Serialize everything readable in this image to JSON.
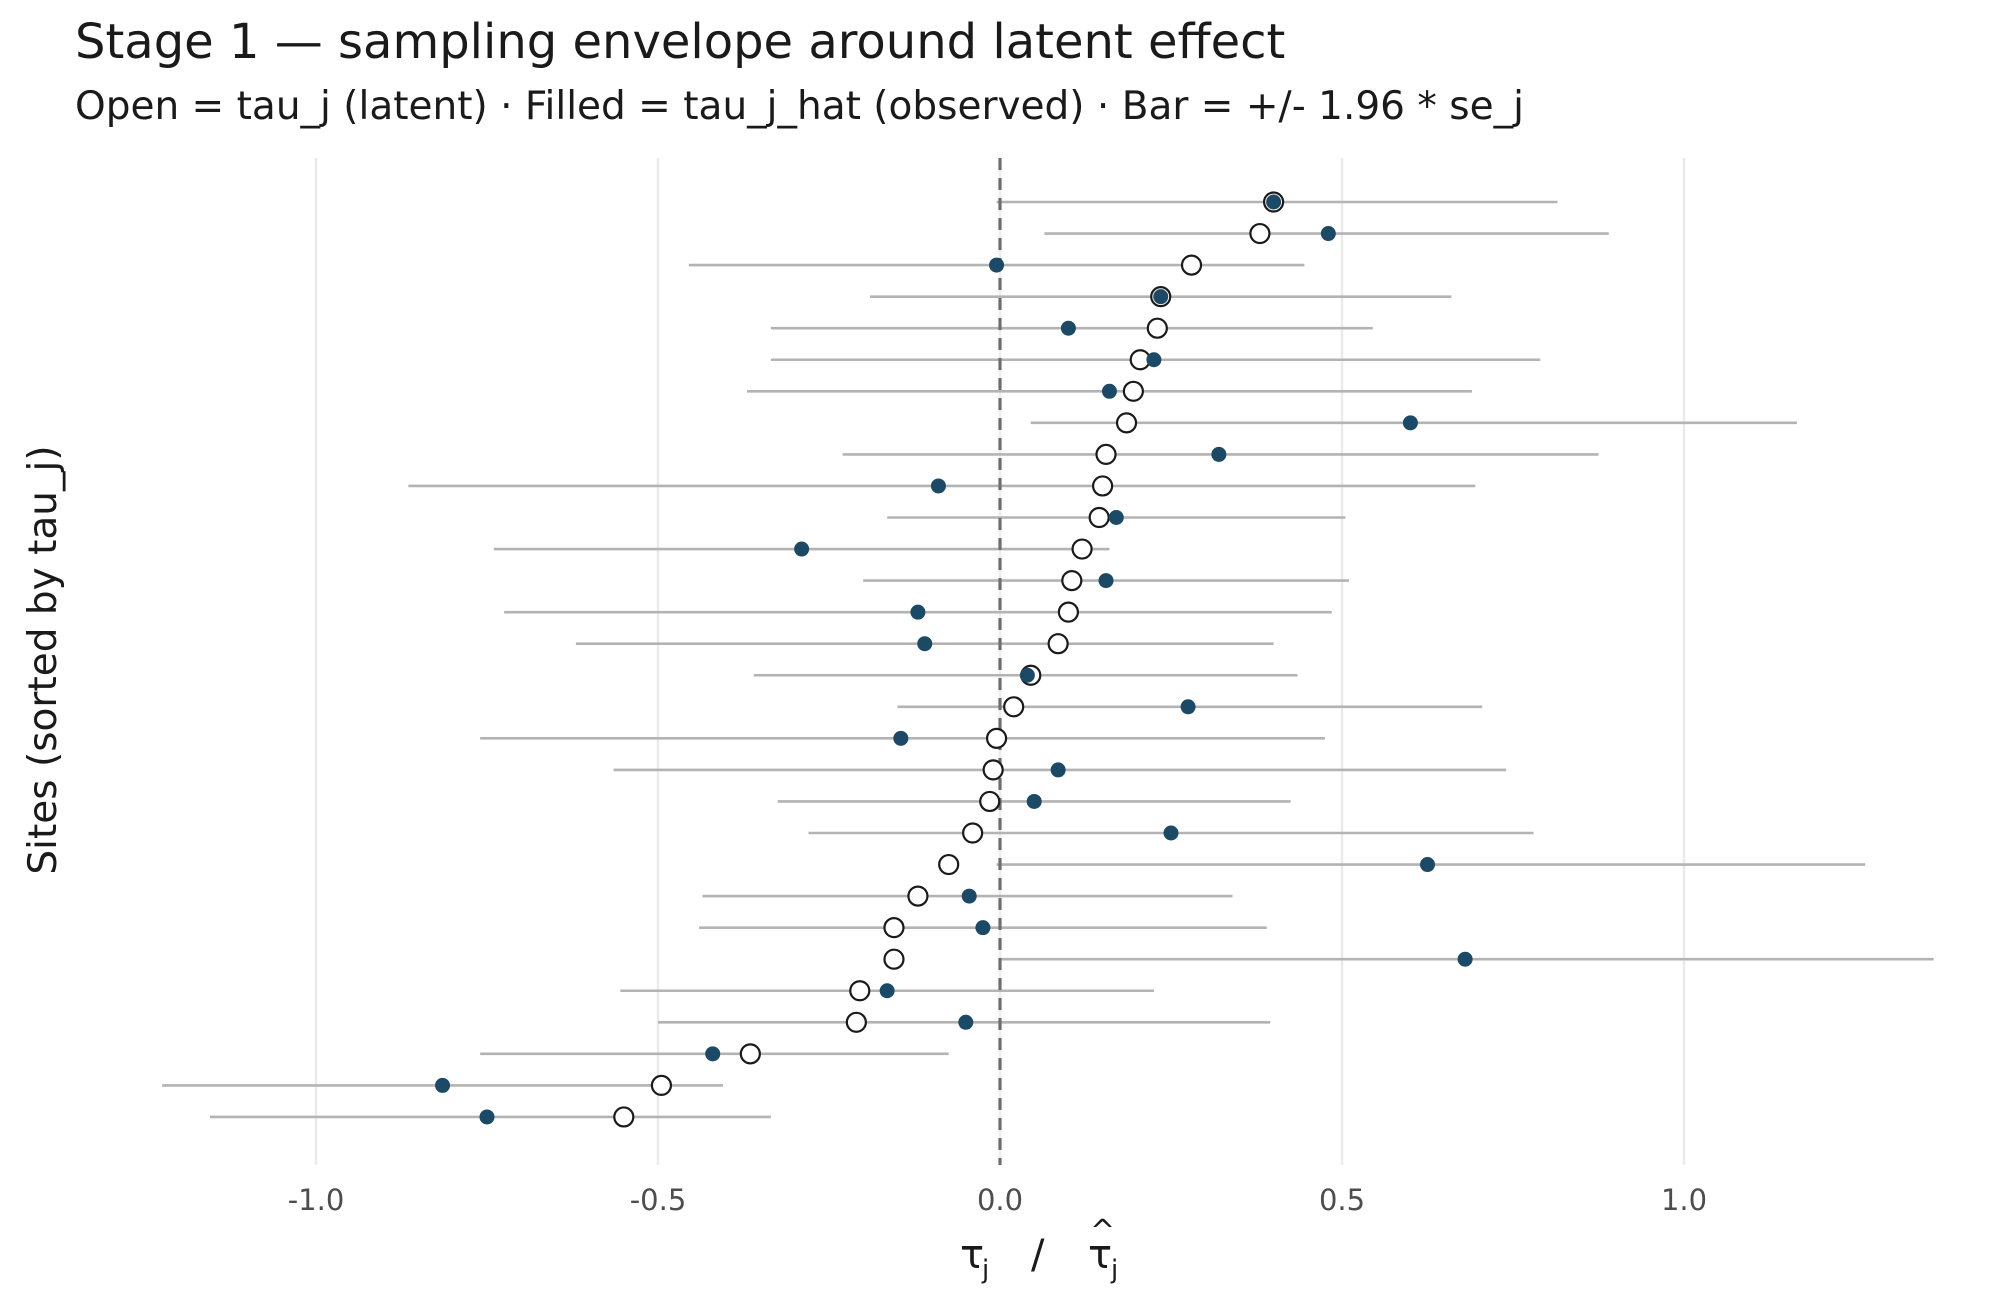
{
  "chart_data": {
    "type": "scatter",
    "title": "Stage 1 — sampling envelope around latent effect",
    "subtitle": "Open = tau_j (latent) · Filled = tau_j_hat (observed) · Bar = +/- 1.96 * se_j",
    "xlabel": "τj / τ̂j",
    "ylabel": "Sites (sorted by tau_j)",
    "xlim": [
      -1.25,
      1.4
    ],
    "x_ticks": [
      -1.0,
      -0.5,
      0.0,
      0.5,
      1.0
    ],
    "x_tick_labels": [
      "-1.0",
      "-0.5",
      "0.0",
      "0.5",
      "1.0"
    ],
    "reference_line": {
      "x": 0.0,
      "style": "dashed"
    },
    "grid": "vertical major",
    "legend": "none",
    "colors": {
      "observed": "#1c4966",
      "latent_fill": "#ffffff",
      "latent_stroke": "#1a1a1a",
      "interval": "#b3b3b3",
      "grid": "#ebebeb",
      "refline": "#6e6e6e"
    },
    "series": [
      {
        "name": "tau_j",
        "marker": "open-circle",
        "values": [
          0.4,
          0.38,
          0.28,
          0.235,
          0.23,
          0.205,
          0.195,
          0.185,
          0.155,
          0.15,
          0.145,
          0.12,
          0.105,
          0.1,
          0.085,
          0.045,
          0.02,
          -0.005,
          -0.01,
          -0.015,
          -0.04,
          -0.075,
          -0.12,
          -0.155,
          -0.155,
          -0.205,
          -0.21,
          -0.365,
          -0.495,
          -0.55
        ]
      },
      {
        "name": "tau_j_hat",
        "marker": "filled-dot",
        "values": [
          0.4,
          0.48,
          -0.005,
          0.235,
          0.1,
          0.225,
          0.16,
          0.6,
          0.32,
          -0.09,
          0.17,
          -0.29,
          0.155,
          -0.12,
          -0.11,
          0.04,
          0.275,
          -0.145,
          0.085,
          0.05,
          0.25,
          0.625,
          -0.045,
          -0.025,
          0.68,
          -0.165,
          -0.05,
          -0.42,
          -0.815,
          -0.75
        ]
      },
      {
        "name": "interval",
        "marker": "bar",
        "lower": [
          -0.005,
          0.065,
          -0.455,
          -0.19,
          -0.335,
          -0.335,
          -0.37,
          0.045,
          -0.23,
          -0.865,
          -0.165,
          -0.74,
          -0.2,
          -0.725,
          -0.62,
          -0.36,
          -0.15,
          -0.76,
          -0.565,
          -0.325,
          -0.28,
          -0.005,
          -0.435,
          -0.44,
          0.0,
          -0.555,
          -0.5,
          -0.76,
          -1.225,
          -1.155
        ],
        "upper": [
          0.815,
          0.89,
          0.445,
          0.66,
          0.545,
          0.79,
          0.69,
          1.165,
          0.875,
          0.695,
          0.505,
          0.16,
          0.51,
          0.485,
          0.4,
          0.435,
          0.705,
          0.475,
          0.74,
          0.425,
          0.78,
          1.265,
          0.34,
          0.39,
          1.365,
          0.225,
          0.395,
          -0.075,
          -0.405,
          -0.335
        ]
      }
    ]
  }
}
